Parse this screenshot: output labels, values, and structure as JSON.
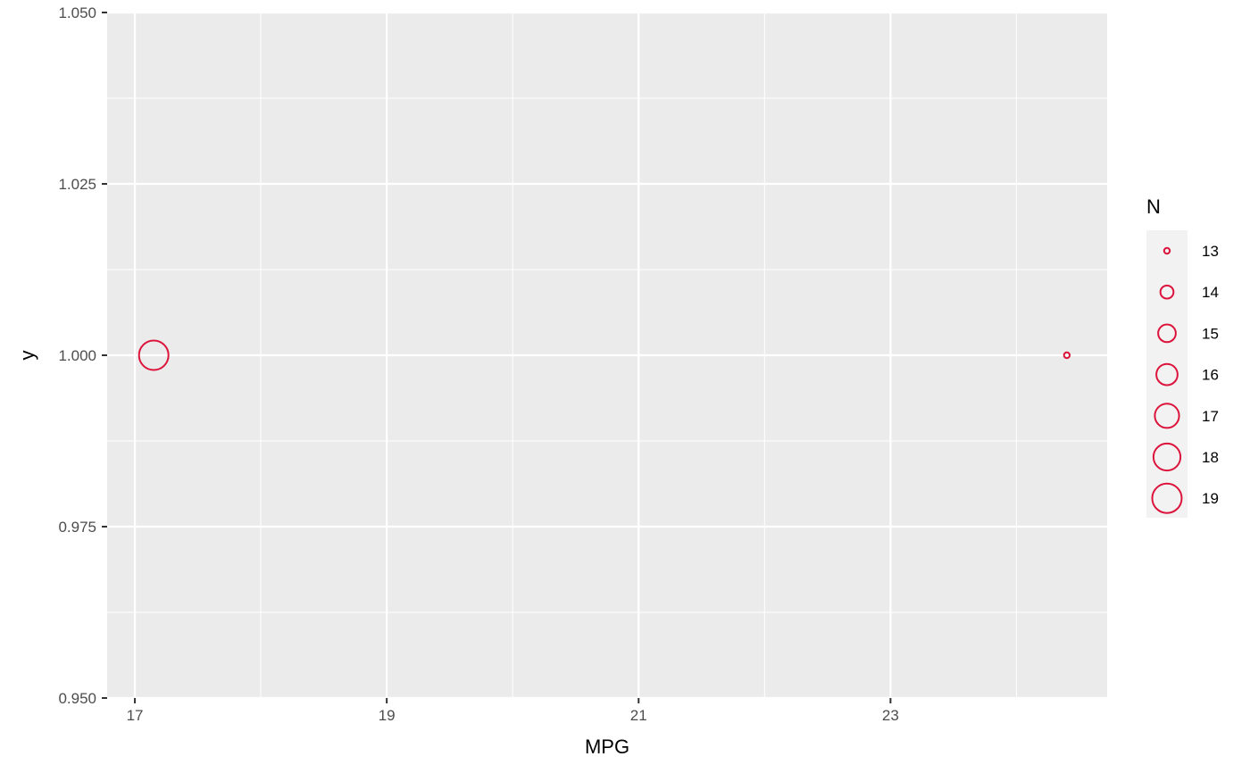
{
  "chart_data": {
    "type": "scatter",
    "title": "",
    "xlabel": "MPG",
    "ylabel": "y",
    "xlim": [
      16.78,
      24.72
    ],
    "ylim": [
      0.95,
      1.05
    ],
    "x_ticks": [
      17,
      19,
      21,
      23
    ],
    "x_tick_labels": [
      "17",
      "19",
      "21",
      "23"
    ],
    "y_ticks": [
      0.95,
      0.975,
      1.0,
      1.025,
      1.05
    ],
    "y_tick_labels": [
      "0.950",
      "0.975",
      "1.000",
      "1.025",
      "1.050"
    ],
    "grid": true,
    "marker": "open-circle",
    "color": "#DC143C",
    "panel_background": "#EBEBEB",
    "points": [
      {
        "x": 17.15,
        "y": 1.0,
        "n": 19
      },
      {
        "x": 24.4,
        "y": 1.0,
        "n": 13
      }
    ],
    "legend": {
      "title": "N",
      "placement": "right",
      "entries": [
        {
          "label": "13",
          "n": 13
        },
        {
          "label": "14",
          "n": 14
        },
        {
          "label": "15",
          "n": 15
        },
        {
          "label": "16",
          "n": 16
        },
        {
          "label": "17",
          "n": 17
        },
        {
          "label": "18",
          "n": 18
        },
        {
          "label": "19",
          "n": 19
        }
      ]
    }
  }
}
